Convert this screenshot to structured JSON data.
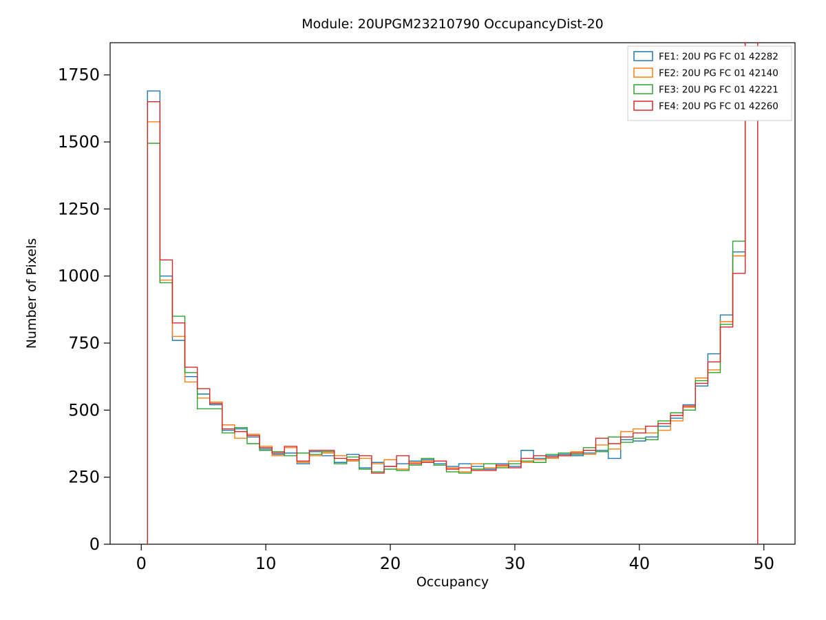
{
  "chart_data": {
    "type": "line",
    "style": "step-histogram",
    "title": "Module: 20UPGM23210790 OccupancyDist-20",
    "xlabel": "Occupancy",
    "ylabel": "Number of Pixels",
    "xlim": [
      -2.5,
      52.5
    ],
    "ylim": [
      0,
      1870
    ],
    "xticks": [
      0,
      10,
      20,
      30,
      40,
      50
    ],
    "yticks": [
      0,
      250,
      500,
      750,
      1000,
      1250,
      1500,
      1750
    ],
    "bin_start": 0.5,
    "bin_width": 1,
    "grid": false,
    "legend_position": "upper right",
    "note": "Final bin (48.5-49.5) spike is off-scale and clipped at the top of the axes",
    "series": [
      {
        "name": "FE1: 20U PG FC 01 42282",
        "color": "#1f77b4",
        "values": [
          1690,
          1000,
          760,
          625,
          560,
          520,
          425,
          430,
          400,
          355,
          335,
          340,
          300,
          345,
          330,
          305,
          335,
          285,
          305,
          290,
          300,
          310,
          315,
          300,
          290,
          300,
          290,
          280,
          300,
          290,
          350,
          320,
          330,
          335,
          330,
          340,
          350,
          320,
          390,
          385,
          400,
          440,
          470,
          520,
          590,
          710,
          855,
          1090,
          12000
        ]
      },
      {
        "name": "FE2: 20U PG FC 01 42140",
        "color": "#ff7f0e",
        "values": [
          1575,
          985,
          775,
          605,
          545,
          530,
          445,
          395,
          410,
          365,
          330,
          360,
          305,
          330,
          340,
          330,
          310,
          320,
          300,
          315,
          280,
          305,
          310,
          310,
          285,
          270,
          300,
          285,
          290,
          310,
          305,
          315,
          320,
          330,
          345,
          335,
          370,
          355,
          420,
          430,
          415,
          425,
          460,
          510,
          620,
          650,
          830,
          1075,
          12000
        ]
      },
      {
        "name": "FE3: 20U PG FC 01 42221",
        "color": "#2ca02c",
        "values": [
          1495,
          975,
          850,
          640,
          505,
          505,
          415,
          435,
          375,
          350,
          345,
          330,
          340,
          335,
          345,
          300,
          325,
          280,
          270,
          280,
          275,
          295,
          320,
          295,
          270,
          265,
          280,
          300,
          285,
          300,
          310,
          305,
          335,
          340,
          335,
          360,
          345,
          400,
          380,
          395,
          390,
          460,
          490,
          500,
          610,
          640,
          820,
          1130,
          12000
        ]
      },
      {
        "name": "FE4: 20U PG FC 01 42260",
        "color": "#d62728",
        "values": [
          1650,
          1060,
          825,
          660,
          580,
          525,
          430,
          420,
          405,
          360,
          340,
          365,
          310,
          350,
          350,
          320,
          315,
          330,
          265,
          290,
          330,
          300,
          305,
          310,
          280,
          285,
          275,
          275,
          295,
          285,
          320,
          330,
          325,
          330,
          340,
          350,
          395,
          375,
          400,
          415,
          440,
          450,
          480,
          515,
          600,
          680,
          810,
          1010,
          12000
        ]
      }
    ]
  }
}
